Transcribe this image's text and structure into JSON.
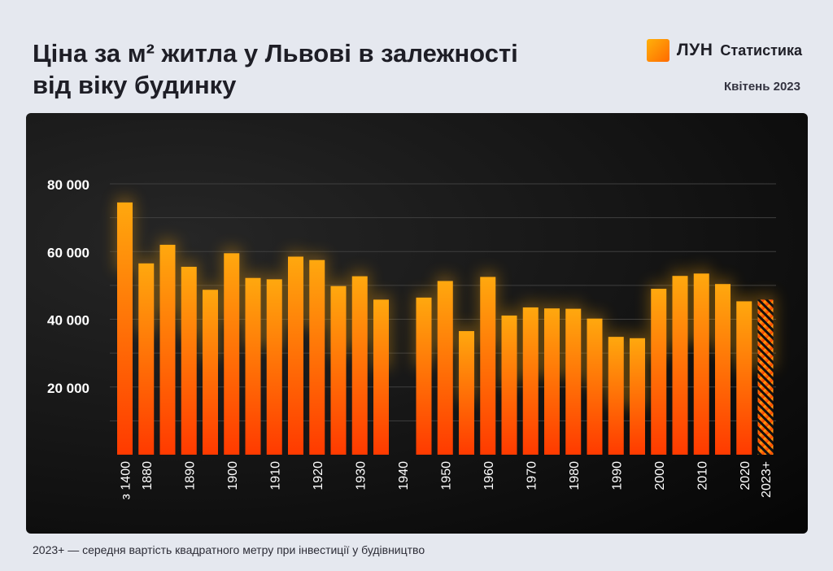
{
  "header": {
    "title_line1": "Ціна за м² житла у Львові в залежності",
    "title_line2": "від віку будинку",
    "brand_name": "ЛУН",
    "brand_sub": "Статистика",
    "date": "Квітень 2023"
  },
  "footnote": "2023+ — середня вартість квадратного метру при інвестиції у будівництво",
  "colors": {
    "bar_top": "#ffa80e",
    "bar_bottom": "#ff3a00",
    "axis_text": "#ffffff",
    "grid": "#3f3f3f",
    "panel_bg": "#111111"
  },
  "chart_data": {
    "type": "bar",
    "title": "Ціна за м² житла у Львові в залежності від віку будинку",
    "xlabel": "",
    "ylabel": "",
    "ylim": [
      0,
      80000
    ],
    "yticks": [
      20000,
      40000,
      60000,
      80000
    ],
    "ytick_labels": [
      "20 000",
      "40 000",
      "60 000",
      "80 000"
    ],
    "grid": true,
    "categories": [
      "з 1400",
      "1880",
      "1885",
      "1890",
      "1895",
      "1900",
      "1905",
      "1910",
      "1915",
      "1920",
      "1925",
      "1930",
      "1935",
      "1940",
      "1945",
      "1950",
      "1955",
      "1960",
      "1965",
      "1970",
      "1975",
      "1980",
      "1985",
      "1990",
      "1995",
      "2000",
      "2005",
      "2010",
      "2015",
      "2020",
      "2023+"
    ],
    "tick_labels": [
      "з 1400",
      "1880",
      "",
      "1890",
      "",
      "1900",
      "",
      "1910",
      "",
      "1920",
      "",
      "1930",
      "",
      "1940",
      "",
      "1950",
      "",
      "1960",
      "",
      "1970",
      "",
      "1980",
      "",
      "1990",
      "",
      "2000",
      "",
      "2010",
      "",
      "2020",
      "2023+"
    ],
    "values": [
      74500,
      56500,
      62000,
      55500,
      48700,
      59500,
      52200,
      51800,
      58500,
      57500,
      49800,
      52700,
      45800,
      null,
      46400,
      51300,
      36500,
      52500,
      41100,
      43500,
      43200,
      43100,
      40200,
      34800,
      34400,
      49000,
      52800,
      53500,
      50400,
      45300,
      45800
    ],
    "hatched": [
      "2023+"
    ]
  }
}
